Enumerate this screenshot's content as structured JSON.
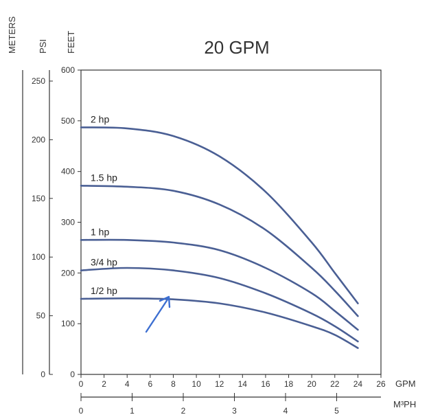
{
  "chart_data": {
    "type": "line",
    "title": "20 GPM",
    "x_unit_label": "GPM",
    "x2_unit_label": "M³PH",
    "y_unit_labels": {
      "meters": "METERS",
      "psi": "PSI",
      "feet": "FEET"
    },
    "xlim": [
      0,
      26
    ],
    "ylim": [
      0,
      600
    ],
    "x_ticks": [
      0,
      2,
      4,
      6,
      8,
      10,
      12,
      14,
      16,
      18,
      20,
      22,
      24,
      26
    ],
    "x2_ticks": [
      0,
      1,
      2,
      3,
      4,
      5
    ],
    "feet_ticks": [
      0,
      100,
      200,
      300,
      400,
      500,
      600
    ],
    "psi_ticks": [
      0,
      50,
      100,
      150,
      200,
      250
    ],
    "series": [
      {
        "name": "2 hp",
        "x": [
          0,
          4,
          8,
          12,
          16,
          20,
          22,
          24
        ],
        "y": [
          487,
          485,
          470,
          430,
          360,
          260,
          200,
          140
        ]
      },
      {
        "name": "1.5 hp",
        "x": [
          0,
          4,
          8,
          12,
          16,
          20,
          22,
          24
        ],
        "y": [
          372,
          370,
          362,
          335,
          285,
          210,
          165,
          115
        ]
      },
      {
        "name": "1 hp",
        "x": [
          0,
          4,
          8,
          12,
          16,
          20,
          22,
          24
        ],
        "y": [
          265,
          265,
          260,
          245,
          210,
          160,
          125,
          88
        ]
      },
      {
        "name": "3/4 hp",
        "x": [
          0,
          4,
          8,
          12,
          16,
          20,
          22,
          24
        ],
        "y": [
          205,
          210,
          205,
          190,
          160,
          120,
          95,
          65
        ]
      },
      {
        "name": "1/2 hp",
        "x": [
          0,
          4,
          8,
          12,
          16,
          20,
          22,
          24
        ],
        "y": [
          149,
          150,
          148,
          140,
          122,
          95,
          78,
          52
        ]
      }
    ],
    "annotation": "arrow pointing to 1/2 hp curve",
    "colors": {
      "curve": "#4a5f94",
      "arrow": "#3d6fd1",
      "axis": "#333333"
    },
    "grid": false
  }
}
